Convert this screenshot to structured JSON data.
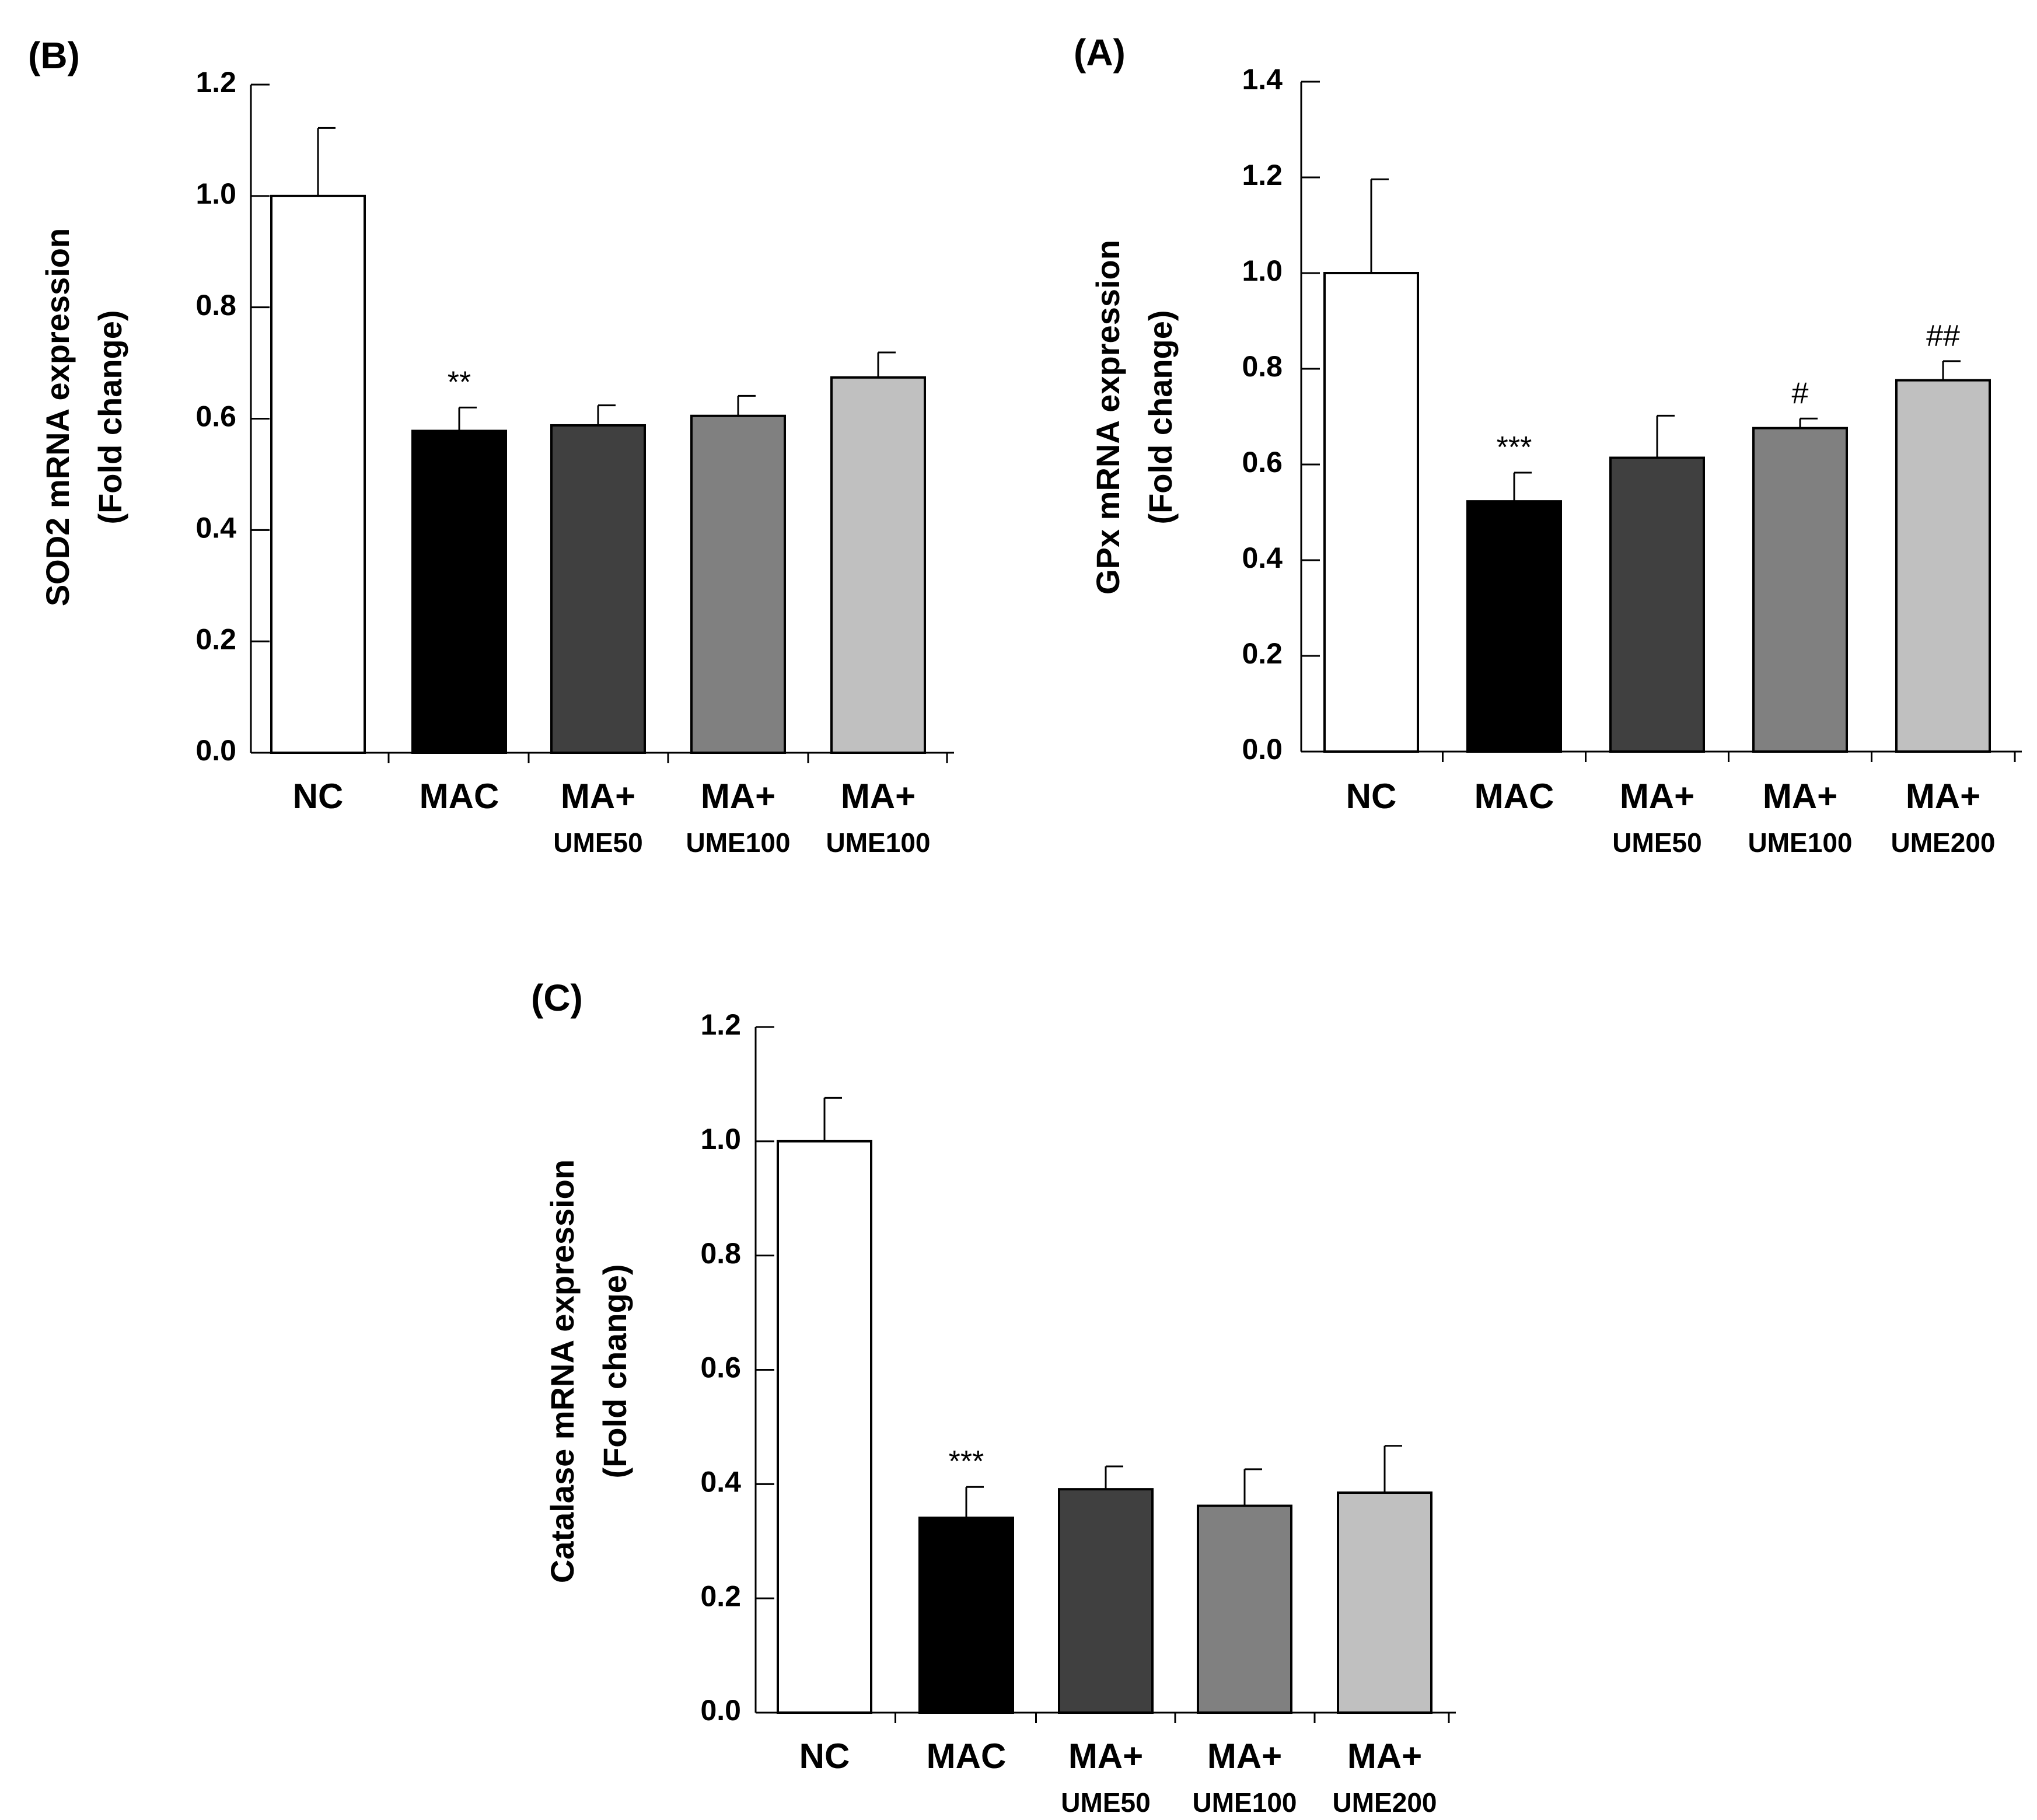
{
  "figure": {
    "type": "multi-panel bar chart"
  },
  "chart_data": [
    {
      "panel": "(B)",
      "type": "bar",
      "ylabel": "SOD2 mRNA expression",
      "ylabel2": "(Fold change)",
      "ylim": [
        0,
        1.2
      ],
      "yticks": [
        "0.0",
        "0.2",
        "0.4",
        "0.6",
        "0.8",
        "1.0",
        "1.2"
      ],
      "categories": [
        {
          "main": "NC",
          "sub": ""
        },
        {
          "main": "MAC",
          "sub": ""
        },
        {
          "main": "MA+",
          "sub": "UME50"
        },
        {
          "main": "MA+",
          "sub": "UME100"
        },
        {
          "main": "MA+",
          "sub": "UME100"
        }
      ],
      "values": [
        1.0,
        0.578,
        0.588,
        0.605,
        0.674
      ],
      "errors": [
        0.122,
        0.042,
        0.036,
        0.036,
        0.045
      ],
      "colors": [
        "#ffffff",
        "#000000",
        "#404040",
        "#808080",
        "#c0c0c0"
      ],
      "annotations": [
        "",
        "**",
        "",
        "",
        ""
      ]
    },
    {
      "panel": "(A)",
      "type": "bar",
      "ylabel": "GPx mRNA expression",
      "ylabel2": "(Fold change)",
      "ylim": [
        0,
        1.4
      ],
      "yticks": [
        "0.0",
        "0.2",
        "0.4",
        "0.6",
        "0.8",
        "1.0",
        "1.2",
        "1.4"
      ],
      "categories": [
        {
          "main": "NC",
          "sub": ""
        },
        {
          "main": "MAC",
          "sub": ""
        },
        {
          "main": "MA+",
          "sub": "UME50"
        },
        {
          "main": "MA+",
          "sub": "UME100"
        },
        {
          "main": "MA+",
          "sub": "UME200"
        }
      ],
      "values": [
        1.0,
        0.523,
        0.614,
        0.676,
        0.776
      ],
      "errors": [
        0.196,
        0.06,
        0.088,
        0.02,
        0.04
      ],
      "colors": [
        "#ffffff",
        "#000000",
        "#404040",
        "#808080",
        "#c0c0c0"
      ],
      "annotations": [
        "",
        "***",
        "",
        "#",
        "##"
      ]
    },
    {
      "panel": "(C)",
      "type": "bar",
      "ylabel": "Catalase mRNA expression",
      "ylabel2": "(Fold change)",
      "ylim": [
        0,
        1.2
      ],
      "yticks": [
        "0.0",
        "0.2",
        "0.4",
        "0.6",
        "0.8",
        "1.0",
        "1.2"
      ],
      "categories": [
        {
          "main": "NC",
          "sub": ""
        },
        {
          "main": "MAC",
          "sub": ""
        },
        {
          "main": "MA+",
          "sub": "UME50"
        },
        {
          "main": "MA+",
          "sub": "UME100"
        },
        {
          "main": "MA+",
          "sub": "UME200"
        }
      ],
      "values": [
        1.0,
        0.341,
        0.391,
        0.362,
        0.385
      ],
      "errors": [
        0.076,
        0.054,
        0.04,
        0.064,
        0.082
      ],
      "colors": [
        "#ffffff",
        "#000000",
        "#404040",
        "#808080",
        "#c0c0c0"
      ],
      "annotations": [
        "",
        "***",
        "",
        "",
        ""
      ]
    }
  ]
}
